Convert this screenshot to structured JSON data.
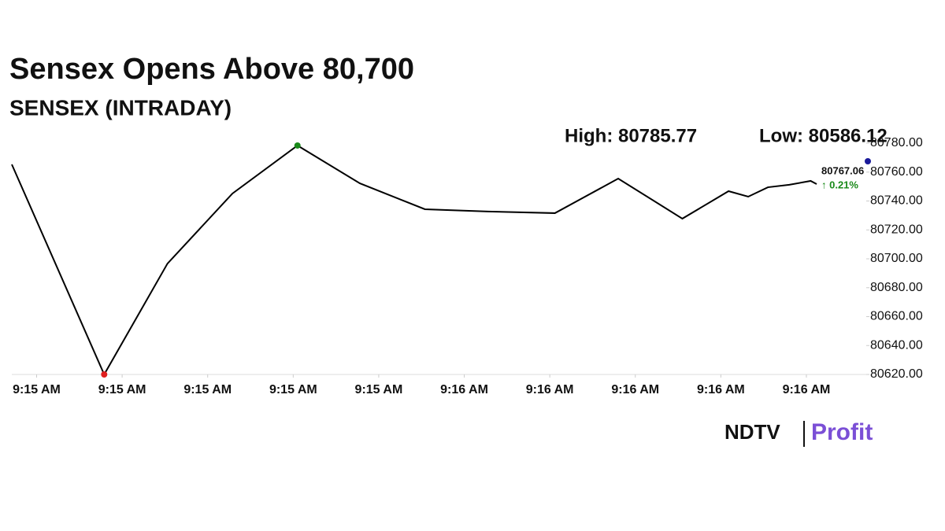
{
  "chart_data": {
    "type": "line",
    "title": "Sensex Opens Above 80,700",
    "subtitle": "SENSEX (INTRADAY)",
    "high_label": "High: 80785.77",
    "low_label": "Low: 80586.12",
    "last_value_label": "80767.06",
    "change_label": "↑ 0.21%",
    "brand": [
      "NDTV",
      "Profit"
    ],
    "x": [
      -0.29,
      0.79,
      1.53,
      2.29,
      3.05,
      3.78,
      4.54,
      5.28,
      6.06,
      6.8,
      7.55,
      8.09,
      8.32,
      8.55,
      8.8,
      9.05,
      9.12
    ],
    "series": [
      {
        "name": "SENSEX",
        "color": "#000000",
        "values": [
          80765.3,
          80620,
          80696.7,
          80745.2,
          80778.4,
          80752.2,
          80734.3,
          80732.7,
          80731.6,
          80755.5,
          80727.8,
          80746.8,
          80743.0,
          80749.5,
          80751.2,
          80753.9,
          80751.7
        ]
      }
    ],
    "low_marker": {
      "index": 1,
      "color": "#e02020"
    },
    "high_marker": {
      "index": 4,
      "color": "#1a8a1a"
    },
    "xlim": [
      -0.29,
      9.7
    ],
    "xticks": [
      {
        "value": 0,
        "label": "9:15 AM"
      },
      {
        "value": 1,
        "label": "9:15 AM"
      },
      {
        "value": 2,
        "label": "9:15 AM"
      },
      {
        "value": 3,
        "label": "9:15 AM"
      },
      {
        "value": 4,
        "label": "9:15 AM"
      },
      {
        "value": 5,
        "label": "9:16 AM"
      },
      {
        "value": 6,
        "label": "9:16 AM"
      },
      {
        "value": 7,
        "label": "9:16 AM"
      },
      {
        "value": 8,
        "label": "9:16 AM"
      },
      {
        "value": 9,
        "label": "9:16 AM"
      }
    ],
    "ylim": [
      80620,
      80780
    ],
    "yticks": [
      {
        "value": 80620,
        "label": "80620.00"
      },
      {
        "value": 80640,
        "label": "80640.00"
      },
      {
        "value": 80660,
        "label": "80660.00"
      },
      {
        "value": 80680,
        "label": "80680.00"
      },
      {
        "value": 80700,
        "label": "80700.00"
      },
      {
        "value": 80720,
        "label": "80720.00"
      },
      {
        "value": 80740,
        "label": "80740.00"
      },
      {
        "value": 80760,
        "label": "80760.00"
      },
      {
        "value": 80780,
        "label": "80780.00"
      }
    ]
  }
}
